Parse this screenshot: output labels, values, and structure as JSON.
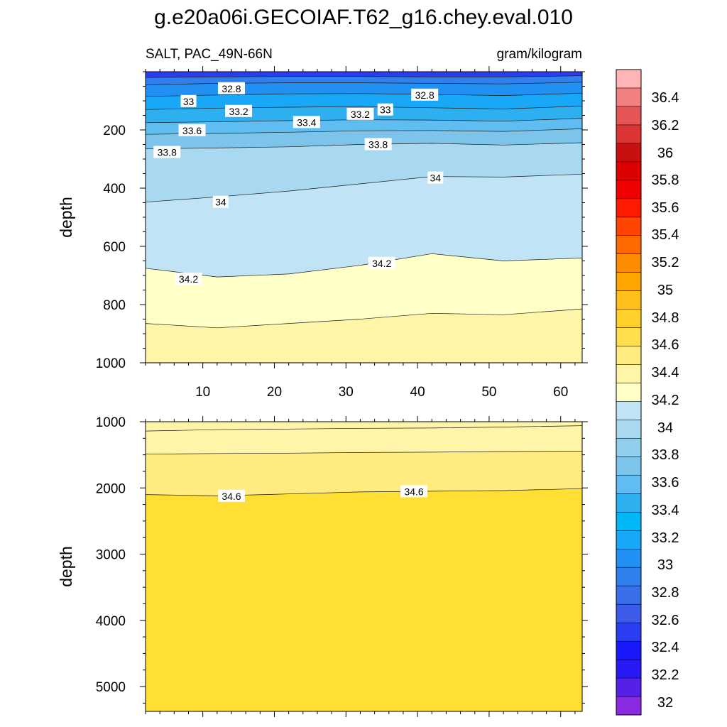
{
  "figure": {
    "title": "g.e20a06i.GECOIAF.T62_g16.chey.eval.010",
    "left_string": "SALT, PAC_49N-66N",
    "right_string": "gram/kilogram"
  },
  "chart_data": [
    {
      "type": "heatmap",
      "subtype": "filled-contour",
      "panel": "upper",
      "ylabel": "depth",
      "xlabel": "",
      "xlim": [
        2,
        63
      ],
      "ylim": [
        0,
        1000
      ],
      "y_reversed": true,
      "x_ticks": [
        10,
        20,
        30,
        40,
        50,
        60
      ],
      "y_ticks": [
        200,
        400,
        600,
        800,
        1000
      ],
      "contour_lines": [
        {
          "level": 32.6,
          "x": [
            2,
            12,
            22,
            32,
            42,
            52,
            63
          ],
          "depth": [
            20,
            18,
            16,
            16,
            18,
            18,
            14
          ]
        },
        {
          "level": 32.8,
          "x": [
            2,
            12,
            22,
            32,
            42,
            52,
            63
          ],
          "depth": [
            45,
            40,
            38,
            38,
            40,
            42,
            36
          ]
        },
        {
          "level": 33.0,
          "x": [
            2,
            12,
            22,
            32,
            42,
            52,
            63
          ],
          "depth": [
            85,
            80,
            76,
            75,
            78,
            82,
            74
          ]
        },
        {
          "level": 33.2,
          "x": [
            2,
            12,
            22,
            32,
            42,
            52,
            63
          ],
          "depth": [
            130,
            125,
            122,
            120,
            124,
            128,
            118
          ]
        },
        {
          "level": 33.4,
          "x": [
            2,
            12,
            22,
            32,
            42,
            52,
            63
          ],
          "depth": [
            175,
            172,
            168,
            165,
            166,
            170,
            160
          ]
        },
        {
          "level": 33.6,
          "x": [
            2,
            12,
            22,
            32,
            42,
            52,
            63
          ],
          "depth": [
            215,
            212,
            208,
            203,
            202,
            205,
            196
          ]
        },
        {
          "level": 33.8,
          "x": [
            2,
            12,
            22,
            32,
            42,
            52,
            63
          ],
          "depth": [
            265,
            262,
            258,
            250,
            246,
            252,
            244
          ]
        },
        {
          "level": 34.0,
          "x": [
            2,
            12,
            22,
            32,
            42,
            52,
            63
          ],
          "depth": [
            448,
            430,
            410,
            385,
            360,
            362,
            352
          ]
        },
        {
          "level": 34.2,
          "x": [
            2,
            12,
            22,
            32,
            42,
            52,
            63
          ],
          "depth": [
            675,
            705,
            695,
            665,
            625,
            650,
            640
          ]
        },
        {
          "level": 34.4,
          "x": [
            2,
            12,
            22,
            32,
            42,
            52,
            63
          ],
          "depth": [
            865,
            880,
            865,
            850,
            830,
            835,
            815
          ]
        }
      ],
      "contour_labels": [
        {
          "text": "32.8",
          "x": 14,
          "depth": 58
        },
        {
          "text": "33",
          "x": 8,
          "depth": 102
        },
        {
          "text": "33.2",
          "x": 15,
          "depth": 136
        },
        {
          "text": "33.4",
          "x": 24.5,
          "depth": 174
        },
        {
          "text": "33.2",
          "x": 32,
          "depth": 146
        },
        {
          "text": "33",
          "x": 35.5,
          "depth": 131
        },
        {
          "text": "32.8",
          "x": 41,
          "depth": 80
        },
        {
          "text": "33.6",
          "x": 8.5,
          "depth": 202
        },
        {
          "text": "33.8",
          "x": 5,
          "depth": 277
        },
        {
          "text": "33.8",
          "x": 34.5,
          "depth": 250
        },
        {
          "text": "34",
          "x": 42.5,
          "depth": 365
        },
        {
          "text": "34",
          "x": 12.5,
          "depth": 448
        },
        {
          "text": "34.2",
          "x": 8,
          "depth": 712
        },
        {
          "text": "34.2",
          "x": 35,
          "depth": 658
        }
      ]
    },
    {
      "type": "heatmap",
      "subtype": "filled-contour",
      "panel": "lower",
      "ylabel": "depth",
      "xlabel": "",
      "xlim": [
        2,
        63
      ],
      "ylim": [
        1000,
        5375
      ],
      "y_reversed": true,
      "x_ticks": [
        10,
        20,
        30,
        40,
        50,
        60
      ],
      "y_ticks": [
        1000,
        2000,
        3000,
        4000,
        5000
      ],
      "contour_lines": [
        {
          "level": 34.4,
          "x": [
            2,
            12,
            22,
            32,
            42,
            52,
            63
          ],
          "depth": [
            1140,
            1120,
            1110,
            1100,
            1095,
            1080,
            1060
          ]
        },
        {
          "level": 34.5,
          "x": [
            2,
            12,
            22,
            32,
            42,
            52,
            63
          ],
          "depth": [
            1490,
            1480,
            1475,
            1465,
            1460,
            1450,
            1445
          ]
        },
        {
          "level": 34.6,
          "x": [
            2,
            12,
            22,
            32,
            42,
            52,
            63
          ],
          "depth": [
            2100,
            2120,
            2090,
            2060,
            2050,
            2040,
            2010
          ]
        }
      ],
      "contour_labels": [
        {
          "text": "34.6",
          "x": 14,
          "depth": 2125
        },
        {
          "text": "34.6",
          "x": 39.5,
          "depth": 2055
        }
      ]
    }
  ],
  "colorbar": {
    "labels": [
      "36.4",
      "36.2",
      "36",
      "35.8",
      "35.6",
      "35.4",
      "35.2",
      "35",
      "34.8",
      "34.6",
      "34.4",
      "34.2",
      "34",
      "33.8",
      "33.6",
      "33.4",
      "33.2",
      "33",
      "32.8",
      "32.6",
      "32.4",
      "32.2",
      "32"
    ],
    "colors": [
      "#FFB5B5",
      "#F28080",
      "#E65555",
      "#DC3535",
      "#C81010",
      "#DC0000",
      "#F00000",
      "#FF1A00",
      "#FF4500",
      "#FF6A00",
      "#FF8C00",
      "#FFA500",
      "#FFBF1A",
      "#FFD02B",
      "#FFDF4D",
      "#FFEB80",
      "#FFF5A8",
      "#FFFFC8",
      "#C0E4F5",
      "#A8D9F0",
      "#92CFED",
      "#7DC4EB",
      "#60BDF2",
      "#2EB0F0",
      "#00B8F5",
      "#18A8F7",
      "#2090F2",
      "#2F80EE",
      "#3A6FEA",
      "#3C5BE8",
      "#2B3DF0",
      "#1818FA",
      "#2818F5",
      "#5520E8",
      "#8A2BE2"
    ]
  }
}
